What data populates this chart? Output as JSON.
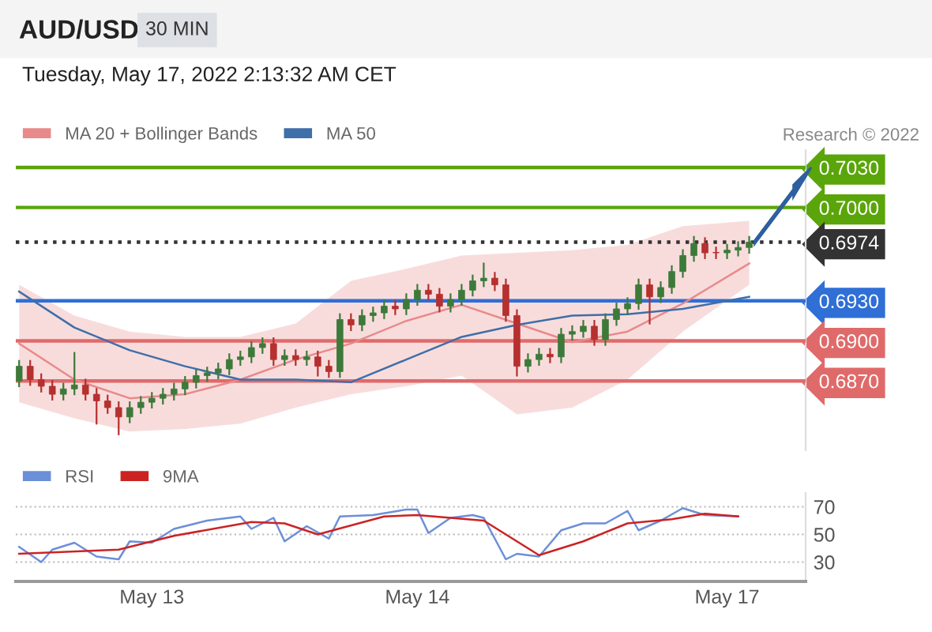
{
  "chart_data": [
    {
      "type": "candlestick",
      "title": "AUD/USD",
      "subtitle": "Tuesday, May 17, 2022 2:13:32 AM CET",
      "annotations": [
        "30 MIN",
        "Research © 2022"
      ],
      "categories": [
        null,
        null,
        null,
        null,
        null,
        null,
        null,
        null,
        null,
        null,
        null,
        null,
        null,
        null,
        null,
        null,
        null,
        null,
        null,
        null,
        null,
        null,
        null,
        null,
        null,
        null,
        null,
        null,
        null,
        null,
        null,
        null,
        null,
        null,
        null,
        null,
        null,
        null,
        null,
        null,
        null,
        null,
        null,
        null,
        null,
        null,
        null,
        null,
        null,
        null,
        null,
        null,
        null,
        null,
        null,
        null,
        null,
        null,
        null,
        null,
        null,
        null,
        null,
        null,
        null,
        null,
        null
      ],
      "ohlc": [
        [
          0.687,
          0.6885,
          0.6866,
          0.6881
        ],
        [
          0.6881,
          0.6885,
          0.6867,
          0.6871
        ],
        [
          0.6871,
          0.6875,
          0.6862,
          0.6866
        ],
        [
          0.6866,
          0.687,
          0.6856,
          0.686
        ],
        [
          0.686,
          0.6868,
          0.6856,
          0.6864
        ],
        [
          0.6864,
          0.6891,
          0.686,
          0.6867
        ],
        [
          0.6867,
          0.6871,
          0.6856,
          0.686
        ],
        [
          0.686,
          0.6864,
          0.6838,
          0.6855
        ],
        [
          0.6855,
          0.6859,
          0.6846,
          0.685
        ],
        [
          0.685,
          0.6854,
          0.683,
          0.6843
        ],
        [
          0.6843,
          0.6854,
          0.6839,
          0.685
        ],
        [
          0.685,
          0.6858,
          0.6846,
          0.6854
        ],
        [
          0.6854,
          0.6861,
          0.685,
          0.6857
        ],
        [
          0.6857,
          0.6864,
          0.6853,
          0.686
        ],
        [
          0.686,
          0.6868,
          0.6856,
          0.6864
        ],
        [
          0.6864,
          0.6873,
          0.686,
          0.6869
        ],
        [
          0.6869,
          0.6878,
          0.6865,
          0.6874
        ],
        [
          0.6874,
          0.688,
          0.687,
          0.6876
        ],
        [
          0.6876,
          0.6883,
          0.6872,
          0.6879
        ],
        [
          0.6879,
          0.689,
          0.6875,
          0.6886
        ],
        [
          0.6886,
          0.6892,
          0.6882,
          0.6888
        ],
        [
          0.6888,
          0.6899,
          0.6884,
          0.6895
        ],
        [
          0.6895,
          0.6902,
          0.6891,
          0.6898
        ],
        [
          0.6898,
          0.6902,
          0.6882,
          0.6886
        ],
        [
          0.6886,
          0.6893,
          0.6882,
          0.6889
        ],
        [
          0.6889,
          0.6893,
          0.6882,
          0.6886
        ],
        [
          0.6886,
          0.6892,
          0.6882,
          0.6888
        ],
        [
          0.6888,
          0.6892,
          0.6874,
          0.6881
        ],
        [
          0.6881,
          0.6885,
          0.6873,
          0.6877
        ],
        [
          0.6877,
          0.692,
          0.6873,
          0.6916
        ],
        [
          0.6916,
          0.692,
          0.6908,
          0.6912
        ],
        [
          0.6912,
          0.6923,
          0.6908,
          0.6919
        ],
        [
          0.6919,
          0.6925,
          0.6915,
          0.6921
        ],
        [
          0.6921,
          0.693,
          0.6917,
          0.6926
        ],
        [
          0.6926,
          0.693,
          0.692,
          0.6924
        ],
        [
          0.6924,
          0.6935,
          0.692,
          0.6931
        ],
        [
          0.6931,
          0.6942,
          0.6927,
          0.6938
        ],
        [
          0.6938,
          0.6942,
          0.6931,
          0.6935
        ],
        [
          0.6935,
          0.6939,
          0.6922,
          0.6926
        ],
        [
          0.6926,
          0.6935,
          0.6922,
          0.6931
        ],
        [
          0.6931,
          0.6942,
          0.6927,
          0.6938
        ],
        [
          0.6938,
          0.6949,
          0.6934,
          0.6945
        ],
        [
          0.6945,
          0.6958,
          0.6941,
          0.6947
        ],
        [
          0.6947,
          0.6951,
          0.6938,
          0.6942
        ],
        [
          0.6942,
          0.6946,
          0.6915,
          0.6919
        ],
        [
          0.6919,
          0.6923,
          0.6874,
          0.6881
        ],
        [
          0.6881,
          0.689,
          0.6877,
          0.6886
        ],
        [
          0.6886,
          0.6894,
          0.6882,
          0.689
        ],
        [
          0.689,
          0.6894,
          0.6884,
          0.6888
        ],
        [
          0.6888,
          0.6909,
          0.6884,
          0.6905
        ],
        [
          0.6905,
          0.6911,
          0.6901,
          0.6907
        ],
        [
          0.6907,
          0.6915,
          0.6903,
          0.6911
        ],
        [
          0.6911,
          0.6915,
          0.6897,
          0.6901
        ],
        [
          0.6901,
          0.692,
          0.6897,
          0.6916
        ],
        [
          0.6916,
          0.6928,
          0.6912,
          0.6924
        ],
        [
          0.6924,
          0.6932,
          0.692,
          0.6928
        ],
        [
          0.6928,
          0.6946,
          0.6924,
          0.6942
        ],
        [
          0.6942,
          0.6946,
          0.6913,
          0.6933
        ],
        [
          0.6933,
          0.6944,
          0.6929,
          0.694
        ],
        [
          0.694,
          0.6956,
          0.6936,
          0.6952
        ],
        [
          0.6952,
          0.6968,
          0.6948,
          0.6964
        ],
        [
          0.6964,
          0.6978,
          0.696,
          0.6973
        ],
        [
          0.6973,
          0.6977,
          0.6962,
          0.6966
        ],
        [
          0.6966,
          0.697,
          0.6962,
          0.6966
        ],
        [
          0.6966,
          0.6972,
          0.6962,
          0.6968
        ],
        [
          0.6968,
          0.6974,
          0.6964,
          0.697
        ],
        [
          0.697,
          0.6978,
          0.6966,
          0.6974
        ]
      ],
      "colors": [
        "#3d7a3a",
        "#b5302f",
        "#b5302f",
        "#b5302f",
        "#3d7a3a",
        "#3d7a3a",
        "#b5302f",
        "#b5302f",
        "#b5302f",
        "#b5302f",
        "#3d7a3a",
        "#3d7a3a",
        "#3d7a3a",
        "#3d7a3a",
        "#3d7a3a",
        "#3d7a3a",
        "#3d7a3a",
        "#3d7a3a",
        "#3d7a3a",
        "#3d7a3a",
        "#3d7a3a",
        "#3d7a3a",
        "#3d7a3a",
        "#b5302f",
        "#3d7a3a",
        "#b5302f",
        "#3d7a3a",
        "#b5302f",
        "#b5302f",
        "#3d7a3a",
        "#b5302f",
        "#3d7a3a",
        "#3d7a3a",
        "#3d7a3a",
        "#b5302f",
        "#3d7a3a",
        "#3d7a3a",
        "#b5302f",
        "#b5302f",
        "#3d7a3a",
        "#3d7a3a",
        "#3d7a3a",
        "#3d7a3a",
        "#b5302f",
        "#b5302f",
        "#b5302f",
        "#3d7a3a",
        "#3d7a3a",
        "#b5302f",
        "#3d7a3a",
        "#3d7a3a",
        "#3d7a3a",
        "#b5302f",
        "#3d7a3a",
        "#3d7a3a",
        "#3d7a3a",
        "#3d7a3a",
        "#b5302f",
        "#3d7a3a",
        "#3d7a3a",
        "#3d7a3a",
        "#3d7a3a",
        "#b5302f",
        "#b5302f",
        "#3d7a3a",
        "#3d7a3a",
        "#3d7a3a"
      ],
      "series": [
        {
          "name": "MA 20 + Bollinger Bands",
          "type": "line",
          "color": "#e88a8a",
          "values": [
            0.6898,
            null,
            null,
            null,
            null,
            0.6871,
            null,
            null,
            null,
            null,
            0.6857,
            null,
            null,
            null,
            null,
            0.686,
            null,
            null,
            null,
            null,
            0.6871,
            null,
            null,
            null,
            null,
            0.6886,
            null,
            null,
            null,
            null,
            0.6898,
            null,
            null,
            null,
            null,
            0.6915,
            null,
            null,
            null,
            null,
            0.6927,
            null,
            null,
            null,
            null,
            0.6913,
            null,
            null,
            null,
            null,
            0.6899,
            null,
            null,
            null,
            null,
            0.6907,
            null,
            null,
            null,
            null,
            0.6928,
            null,
            null,
            null,
            null,
            null,
            0.6958
          ],
          "lower": [
            0.6854,
            null,
            null,
            null,
            null,
            0.6842,
            null,
            null,
            null,
            null,
            0.6832,
            null,
            null,
            null,
            null,
            0.6834,
            null,
            null,
            null,
            null,
            0.6838,
            null,
            null,
            null,
            null,
            0.685,
            null,
            null,
            null,
            null,
            0.686,
            null,
            null,
            null,
            null,
            0.6866,
            null,
            null,
            null,
            null,
            0.6874,
            null,
            null,
            null,
            null,
            0.6845,
            null,
            null,
            null,
            null,
            0.685,
            null,
            null,
            null,
            null,
            0.6871,
            null,
            null,
            null,
            null,
            0.6907,
            null,
            null,
            null,
            null,
            null,
            0.6942
          ],
          "upper": [
            0.6942,
            null,
            null,
            null,
            null,
            0.6919,
            null,
            null,
            null,
            null,
            0.6907,
            null,
            null,
            null,
            null,
            0.6903,
            null,
            null,
            null,
            null,
            0.6903,
            null,
            null,
            null,
            null,
            0.6913,
            null,
            null,
            null,
            null,
            0.6945,
            null,
            null,
            null,
            null,
            0.6954,
            null,
            null,
            null,
            null,
            0.6964,
            null,
            null,
            null,
            null,
            0.6966,
            null,
            null,
            null,
            null,
            0.6968,
            null,
            null,
            null,
            null,
            0.6972,
            null,
            null,
            null,
            null,
            0.6986,
            null,
            null,
            null,
            null,
            null,
            0.699
          ]
        },
        {
          "name": "MA 50",
          "type": "line",
          "color": "#3f6fa8",
          "values": [
            0.6937,
            null,
            null,
            null,
            null,
            0.691,
            null,
            null,
            null,
            null,
            0.6893,
            null,
            null,
            null,
            null,
            0.6881,
            null,
            null,
            null,
            null,
            0.6871,
            null,
            null,
            null,
            null,
            0.6871,
            null,
            null,
            null,
            null,
            0.6869,
            null,
            null,
            null,
            null,
            0.6886,
            null,
            null,
            null,
            null,
            0.6903,
            null,
            null,
            null,
            null,
            0.6912,
            null,
            null,
            null,
            null,
            0.6919,
            null,
            null,
            null,
            null,
            0.692,
            null,
            null,
            null,
            null,
            0.6924,
            null,
            null,
            null,
            null,
            null,
            0.6933
          ]
        }
      ],
      "ref_lines": [
        {
          "axis": "y",
          "value": 0.703,
          "color": "#5aa50a"
        },
        {
          "axis": "y",
          "value": 0.7,
          "color": "#5aa50a"
        },
        {
          "axis": "y",
          "value": 0.6974,
          "color": "#333333",
          "line_style": "dotted"
        },
        {
          "axis": "y",
          "value": 0.693,
          "color": "#2f6fd6"
        },
        {
          "axis": "y",
          "value": 0.69,
          "color": "#e06a6a"
        },
        {
          "axis": "y",
          "value": 0.687,
          "color": "#e06a6a"
        }
      ],
      "yticks": [
        {
          "value": 0.703,
          "label": "0.7030"
        },
        {
          "value": 0.7,
          "label": "0.7000"
        },
        0.6974,
        {
          "value": 0.693,
          "label": "0.6930"
        },
        {
          "value": 0.69,
          "label": "0.6900"
        },
        {
          "value": 0.687,
          "label": "0.6870"
        }
      ],
      "ylim": [
        0.6818,
        0.7043
      ],
      "tick_labels": "y",
      "legend": "top left",
      "grid": false
    },
    {
      "type": "line",
      "categories": [
        null,
        null,
        null,
        null,
        null,
        null,
        null,
        null,
        null,
        null,
        null,
        null,
        "May 13",
        null,
        null,
        null,
        null,
        null,
        null,
        null,
        null,
        null,
        null,
        null,
        null,
        null,
        null,
        null,
        null,
        null,
        null,
        null,
        null,
        null,
        null,
        null,
        "May 14",
        null,
        null,
        null,
        null,
        null,
        null,
        null,
        null,
        null,
        null,
        null,
        null,
        null,
        null,
        null,
        null,
        null,
        null,
        null,
        null,
        null,
        null,
        null,
        null,
        null,
        null,
        null,
        "May 17",
        null,
        null
      ],
      "series": [
        {
          "name": "RSI",
          "color": "#6b8fd8",
          "values": [
            41,
            null,
            30,
            39,
            null,
            44,
            null,
            34,
            null,
            32,
            45,
            null,
            44,
            null,
            54,
            null,
            58,
            60,
            null,
            null,
            63,
            54,
            null,
            62,
            45,
            null,
            56,
            null,
            47,
            63,
            null,
            null,
            64,
            null,
            null,
            68,
            68,
            51,
            null,
            62,
            null,
            64,
            62,
            null,
            32,
            36,
            null,
            34,
            null,
            53,
            null,
            58,
            null,
            58,
            null,
            67,
            53,
            null,
            60,
            null,
            69,
            null,
            64,
            null,
            null,
            63,
            null
          ]
        },
        {
          "name": "9MA",
          "color": "#cc2222",
          "values": [
            36,
            null,
            null,
            null,
            null,
            null,
            null,
            null,
            null,
            39,
            null,
            null,
            null,
            null,
            49,
            null,
            null,
            null,
            null,
            null,
            null,
            59,
            null,
            null,
            58,
            null,
            null,
            50,
            null,
            null,
            null,
            null,
            null,
            63,
            null,
            null,
            64,
            null,
            null,
            null,
            null,
            null,
            60,
            null,
            null,
            null,
            null,
            35,
            null,
            null,
            null,
            45,
            null,
            null,
            null,
            58,
            null,
            null,
            null,
            61,
            null,
            null,
            65,
            null,
            null,
            63,
            null
          ]
        }
      ],
      "yticks": [
        70,
        50,
        30
      ],
      "ylim": [
        16,
        80
      ],
      "legend": "top left",
      "grid": "y"
    }
  ]
}
